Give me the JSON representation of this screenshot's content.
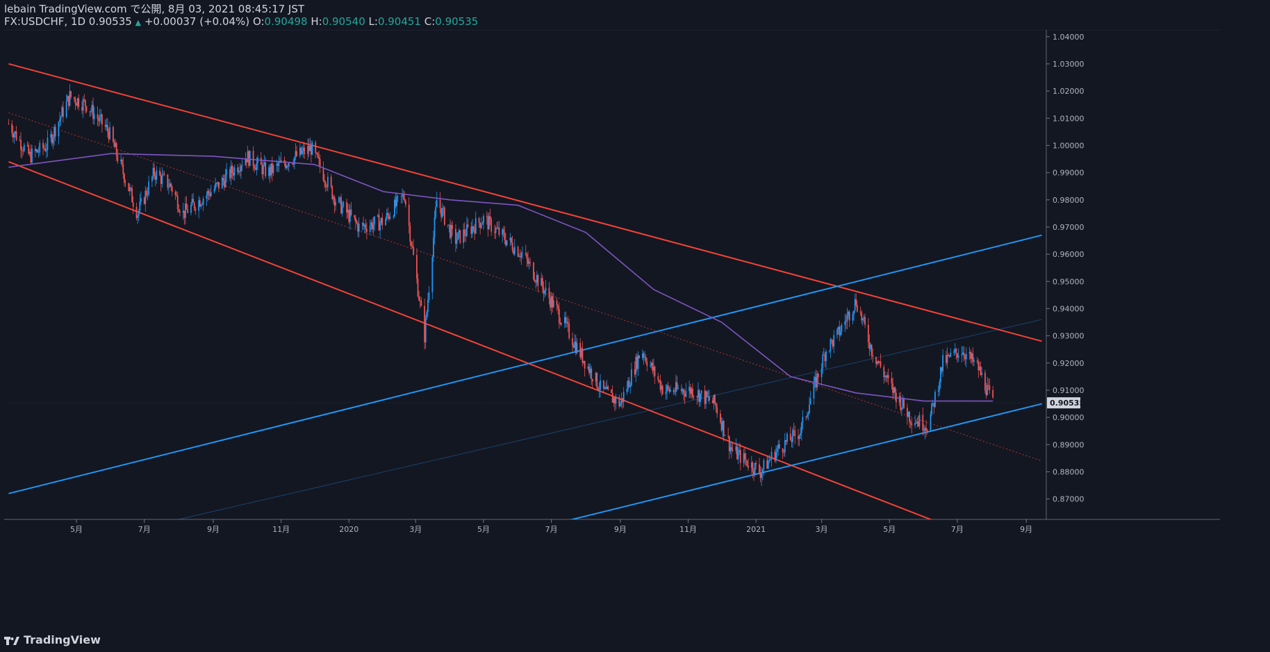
{
  "header": {
    "publish_line": "lebain TradingView.com で公開, 8月 03, 2021 08:45:17 JST",
    "symbol_tf_price": "FX:USDCHF, 1D 0.90535",
    "change": "+0.00037 (+0.04%)",
    "o_label": "O:",
    "o_value": "0.90498",
    "h_label": "H:",
    "h_value": "0.90540",
    "l_label": "L:",
    "l_value": "0.90451",
    "c_label": "C:",
    "c_value": "0.90535"
  },
  "footer": {
    "brand": "TradingView",
    "icon": "tradingview-logo-icon"
  },
  "colors": {
    "background": "#131722",
    "up": "#2196f3",
    "down": "#ef5350",
    "ma": "#7e57c2",
    "channel_red": "#f44336",
    "channel_blue": "#2196f3",
    "axis_text": "#b2b5be",
    "grid": "#1e222d"
  },
  "chart_data": {
    "type": "candlestick",
    "symbol": "FX:USDCHF",
    "timeframe": "1D",
    "last_price": "0.90535",
    "ylim": [
      0.8625,
      1.0425
    ],
    "y_ticks": [
      "0.87000",
      "0.88000",
      "0.89000",
      "0.90000",
      "0.91000",
      "0.92000",
      "0.93000",
      "0.94000",
      "0.95000",
      "0.96000",
      "0.97000",
      "0.98000",
      "0.99000",
      "1.00000",
      "1.01000",
      "1.02000",
      "1.03000",
      "1.04000"
    ],
    "x_ticks": [
      {
        "label": "5月",
        "date": "2019-05"
      },
      {
        "label": "7月",
        "date": "2019-07"
      },
      {
        "label": "9月",
        "date": "2019-09"
      },
      {
        "label": "11月",
        "date": "2019-11"
      },
      {
        "label": "2020",
        "date": "2020-01"
      },
      {
        "label": "3月",
        "date": "2020-03"
      },
      {
        "label": "5月",
        "date": "2020-05"
      },
      {
        "label": "7月",
        "date": "2020-07"
      },
      {
        "label": "9月",
        "date": "2020-09"
      },
      {
        "label": "11月",
        "date": "2020-11"
      },
      {
        "label": "2021",
        "date": "2021-01"
      },
      {
        "label": "3月",
        "date": "2021-03"
      },
      {
        "label": "5月",
        "date": "2021-05"
      },
      {
        "label": "7月",
        "date": "2021-07"
      },
      {
        "label": "9月",
        "date": "2021-09"
      }
    ],
    "price_path": [
      {
        "date": "2019-03-01",
        "price": 1.008
      },
      {
        "date": "2019-03-20",
        "price": 0.996
      },
      {
        "date": "2019-04-05",
        "price": 1.0
      },
      {
        "date": "2019-04-25",
        "price": 1.018
      },
      {
        "date": "2019-05-10",
        "price": 1.015
      },
      {
        "date": "2019-05-30",
        "price": 1.005
      },
      {
        "date": "2019-06-25",
        "price": 0.975
      },
      {
        "date": "2019-07-10",
        "price": 0.99
      },
      {
        "date": "2019-07-25",
        "price": 0.985
      },
      {
        "date": "2019-08-05",
        "price": 0.975
      },
      {
        "date": "2019-08-20",
        "price": 0.98
      },
      {
        "date": "2019-09-05",
        "price": 0.985
      },
      {
        "date": "2019-10-01",
        "price": 0.996
      },
      {
        "date": "2019-10-20",
        "price": 0.99
      },
      {
        "date": "2019-11-10",
        "price": 0.995
      },
      {
        "date": "2019-11-28",
        "price": 0.999
      },
      {
        "date": "2019-12-20",
        "price": 0.98
      },
      {
        "date": "2020-01-10",
        "price": 0.97
      },
      {
        "date": "2020-02-01",
        "price": 0.972
      },
      {
        "date": "2020-02-20",
        "price": 0.982
      },
      {
        "date": "2020-03-09",
        "price": 0.93
      },
      {
        "date": "2020-03-20",
        "price": 0.98
      },
      {
        "date": "2020-04-05",
        "price": 0.965
      },
      {
        "date": "2020-05-01",
        "price": 0.973
      },
      {
        "date": "2020-06-05",
        "price": 0.96
      },
      {
        "date": "2020-06-20",
        "price": 0.95
      },
      {
        "date": "2020-07-05",
        "price": 0.94
      },
      {
        "date": "2020-07-25",
        "price": 0.925
      },
      {
        "date": "2020-08-15",
        "price": 0.91
      },
      {
        "date": "2020-09-01",
        "price": 0.905
      },
      {
        "date": "2020-09-20",
        "price": 0.925
      },
      {
        "date": "2020-10-10",
        "price": 0.91
      },
      {
        "date": "2020-11-05",
        "price": 0.91
      },
      {
        "date": "2020-11-25",
        "price": 0.905
      },
      {
        "date": "2020-12-10",
        "price": 0.888
      },
      {
        "date": "2021-01-05",
        "price": 0.88
      },
      {
        "date": "2021-01-20",
        "price": 0.888
      },
      {
        "date": "2021-02-10",
        "price": 0.895
      },
      {
        "date": "2021-03-05",
        "price": 0.925
      },
      {
        "date": "2021-03-15",
        "price": 0.93
      },
      {
        "date": "2021-04-01",
        "price": 0.943
      },
      {
        "date": "2021-04-15",
        "price": 0.925
      },
      {
        "date": "2021-05-01",
        "price": 0.912
      },
      {
        "date": "2021-05-20",
        "price": 0.9
      },
      {
        "date": "2021-06-05",
        "price": 0.897
      },
      {
        "date": "2021-06-18",
        "price": 0.92
      },
      {
        "date": "2021-07-05",
        "price": 0.925
      },
      {
        "date": "2021-07-20",
        "price": 0.918
      },
      {
        "date": "2021-08-02",
        "price": 0.905
      }
    ],
    "moving_average": [
      {
        "date": "2019-03-01",
        "price": 0.992
      },
      {
        "date": "2019-06-01",
        "price": 0.997
      },
      {
        "date": "2019-09-01",
        "price": 0.996
      },
      {
        "date": "2019-12-01",
        "price": 0.993
      },
      {
        "date": "2020-02-01",
        "price": 0.983
      },
      {
        "date": "2020-04-01",
        "price": 0.98
      },
      {
        "date": "2020-06-01",
        "price": 0.978
      },
      {
        "date": "2020-08-01",
        "price": 0.968
      },
      {
        "date": "2020-10-01",
        "price": 0.947
      },
      {
        "date": "2020-12-01",
        "price": 0.935
      },
      {
        "date": "2021-02-01",
        "price": 0.915
      },
      {
        "date": "2021-04-01",
        "price": 0.909
      },
      {
        "date": "2021-06-01",
        "price": 0.906
      },
      {
        "date": "2021-08-02",
        "price": 0.906
      }
    ],
    "trendlines": [
      {
        "role": "upper-red",
        "style": "solid",
        "from": {
          "date": "2019-03-01",
          "price": 1.03
        },
        "to": {
          "date": "2021-09-15",
          "price": 0.928
        }
      },
      {
        "role": "lower-red",
        "style": "solid",
        "from": {
          "date": "2019-03-01",
          "price": 0.994
        },
        "to": {
          "date": "2021-06-10",
          "price": 0.862
        }
      },
      {
        "role": "middle-red",
        "style": "dotted",
        "from": {
          "date": "2019-03-01",
          "price": 1.012
        },
        "to": {
          "date": "2021-09-15",
          "price": 0.884
        }
      },
      {
        "role": "upper-blue",
        "style": "solid",
        "from": {
          "date": "2019-03-01",
          "price": 0.872
        },
        "to": {
          "date": "2021-09-15",
          "price": 0.967
        }
      },
      {
        "role": "lower-blue",
        "style": "solid",
        "from": {
          "date": "2020-07-15",
          "price": 0.862
        },
        "to": {
          "date": "2021-09-15",
          "price": 0.905
        }
      },
      {
        "role": "middle-blue",
        "style": "thin",
        "from": {
          "date": "2019-08-01",
          "price": 0.8625
        },
        "to": {
          "date": "2021-09-15",
          "price": 0.936
        }
      }
    ]
  }
}
